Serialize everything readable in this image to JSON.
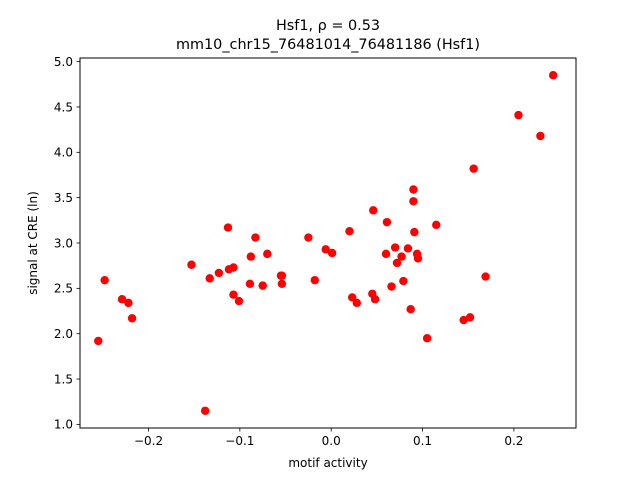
{
  "chart_data": {
    "type": "scatter",
    "title_line1": "Hsf1, ρ = 0.53",
    "title_line2": "mm10_chr15_76481014_76481186 (Hsf1)",
    "xlabel": "motif activity",
    "ylabel": "signal at CRE (ln)",
    "xlim": [
      -0.275,
      0.268
    ],
    "ylim": [
      0.96,
      5.04
    ],
    "xticks": [
      -0.2,
      -0.1,
      0.0,
      0.1,
      0.2
    ],
    "xtick_labels": [
      "−0.2",
      "−0.1",
      "0.0",
      "0.1",
      "0.2"
    ],
    "yticks": [
      1.0,
      1.5,
      2.0,
      2.5,
      3.0,
      3.5,
      4.0,
      4.5,
      5.0
    ],
    "ytick_labels": [
      "1.0",
      "1.5",
      "2.0",
      "2.5",
      "3.0",
      "3.5",
      "4.0",
      "4.5",
      "5.0"
    ],
    "grid": false,
    "marker_color": "#ff0000",
    "points": [
      {
        "x": -0.255,
        "y": 1.92
      },
      {
        "x": -0.248,
        "y": 2.59
      },
      {
        "x": -0.229,
        "y": 2.38
      },
      {
        "x": -0.222,
        "y": 2.34
      },
      {
        "x": -0.218,
        "y": 2.17
      },
      {
        "x": -0.153,
        "y": 2.76
      },
      {
        "x": -0.138,
        "y": 1.15
      },
      {
        "x": -0.133,
        "y": 2.61
      },
      {
        "x": -0.123,
        "y": 2.67
      },
      {
        "x": -0.113,
        "y": 3.17
      },
      {
        "x": -0.112,
        "y": 2.71
      },
      {
        "x": -0.107,
        "y": 2.73
      },
      {
        "x": -0.107,
        "y": 2.43
      },
      {
        "x": -0.101,
        "y": 2.36
      },
      {
        "x": -0.089,
        "y": 2.55
      },
      {
        "x": -0.088,
        "y": 2.85
      },
      {
        "x": -0.083,
        "y": 3.06
      },
      {
        "x": -0.075,
        "y": 2.53
      },
      {
        "x": -0.07,
        "y": 2.88
      },
      {
        "x": -0.055,
        "y": 2.64
      },
      {
        "x": -0.054,
        "y": 2.64
      },
      {
        "x": -0.054,
        "y": 2.55
      },
      {
        "x": -0.025,
        "y": 3.06
      },
      {
        "x": -0.018,
        "y": 2.59
      },
      {
        "x": -0.006,
        "y": 2.93
      },
      {
        "x": 0.001,
        "y": 2.89
      },
      {
        "x": 0.02,
        "y": 3.13
      },
      {
        "x": 0.023,
        "y": 2.4
      },
      {
        "x": 0.028,
        "y": 2.34
      },
      {
        "x": 0.045,
        "y": 2.44
      },
      {
        "x": 0.046,
        "y": 3.36
      },
      {
        "x": 0.048,
        "y": 2.38
      },
      {
        "x": 0.06,
        "y": 2.88
      },
      {
        "x": 0.061,
        "y": 3.23
      },
      {
        "x": 0.066,
        "y": 2.52
      },
      {
        "x": 0.07,
        "y": 2.95
      },
      {
        "x": 0.072,
        "y": 2.78
      },
      {
        "x": 0.077,
        "y": 2.85
      },
      {
        "x": 0.079,
        "y": 2.58
      },
      {
        "x": 0.084,
        "y": 2.94
      },
      {
        "x": 0.087,
        "y": 2.27
      },
      {
        "x": 0.09,
        "y": 3.59
      },
      {
        "x": 0.09,
        "y": 3.46
      },
      {
        "x": 0.091,
        "y": 3.12
      },
      {
        "x": 0.094,
        "y": 2.88
      },
      {
        "x": 0.095,
        "y": 2.83
      },
      {
        "x": 0.105,
        "y": 1.95
      },
      {
        "x": 0.115,
        "y": 3.2
      },
      {
        "x": 0.145,
        "y": 2.15
      },
      {
        "x": 0.152,
        "y": 2.18
      },
      {
        "x": 0.156,
        "y": 3.82
      },
      {
        "x": 0.169,
        "y": 2.63
      },
      {
        "x": 0.205,
        "y": 4.41
      },
      {
        "x": 0.229,
        "y": 4.18
      },
      {
        "x": 0.243,
        "y": 4.85
      }
    ]
  }
}
